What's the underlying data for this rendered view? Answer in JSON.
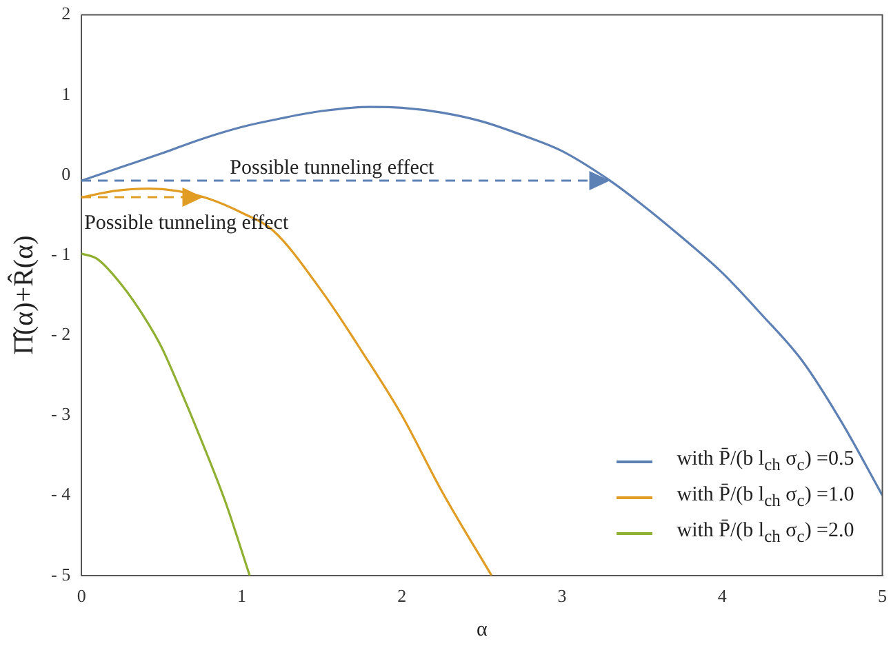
{
  "chart_data": {
    "type": "line",
    "xlabel": "α",
    "ylabel": "Π̂(α)+R̂(α)",
    "xlim": [
      0,
      5
    ],
    "xticks": [
      0,
      1,
      2,
      3,
      4,
      5
    ],
    "ylim": [
      -5,
      2
    ],
    "yticks": [
      2,
      1,
      0,
      {
        "value": -1,
        "label": "- 1"
      },
      {
        "value": -2,
        "label": "- 2"
      },
      {
        "value": -3,
        "label": "- 3"
      },
      {
        "value": -4,
        "label": "- 4"
      },
      {
        "value": -5,
        "label": "- 5"
      }
    ],
    "grid": false,
    "legend": "bottom right",
    "marker": "none",
    "series": [
      {
        "name": "with P̄/(b l$_{ch}$ σ$_{c}$) =0.5",
        "color": "#5e81b5",
        "x": [
          0,
          0.25,
          0.5,
          0.75,
          1,
          1.25,
          1.5,
          1.8,
          2,
          2.25,
          2.5,
          2.75,
          3,
          3.3,
          3.5,
          3.75,
          4,
          4.25,
          4.5,
          4.75,
          5
        ],
        "values": [
          -0.07,
          0.1,
          0.27,
          0.45,
          0.6,
          0.71,
          0.8,
          0.85,
          0.84,
          0.78,
          0.67,
          0.5,
          0.3,
          -0.07,
          -0.37,
          -0.78,
          -1.22,
          -1.75,
          -2.32,
          -3.1,
          -4
        ]
      },
      {
        "name": "with P̄/(b l$_{ch}$ σ$_{c}$) =1.0",
        "color": "#e19c24",
        "x": [
          0,
          0.2,
          0.42,
          0.6,
          0.8,
          1,
          1.2,
          1.5,
          1.75,
          2,
          2.25,
          2.56
        ],
        "values": [
          -0.28,
          -0.2,
          -0.17,
          -0.2,
          -0.3,
          -0.47,
          -0.7,
          -1.45,
          -2.2,
          -3.0,
          -3.95,
          -5
        ]
      },
      {
        "name": "with P̄/(b l$_{ch}$ σ$_{c}$) =2.0",
        "color": "#8fb032",
        "x": [
          0,
          0.1,
          0.25,
          0.4,
          0.5,
          0.6,
          0.75,
          0.9,
          1.05
        ],
        "values": [
          -0.98,
          -1.05,
          -1.37,
          -1.8,
          -2.15,
          -2.6,
          -3.32,
          -4.09,
          -5
        ]
      }
    ],
    "annotations": [
      "Possible tunneling effect",
      "Possible tunneling effect"
    ]
  }
}
